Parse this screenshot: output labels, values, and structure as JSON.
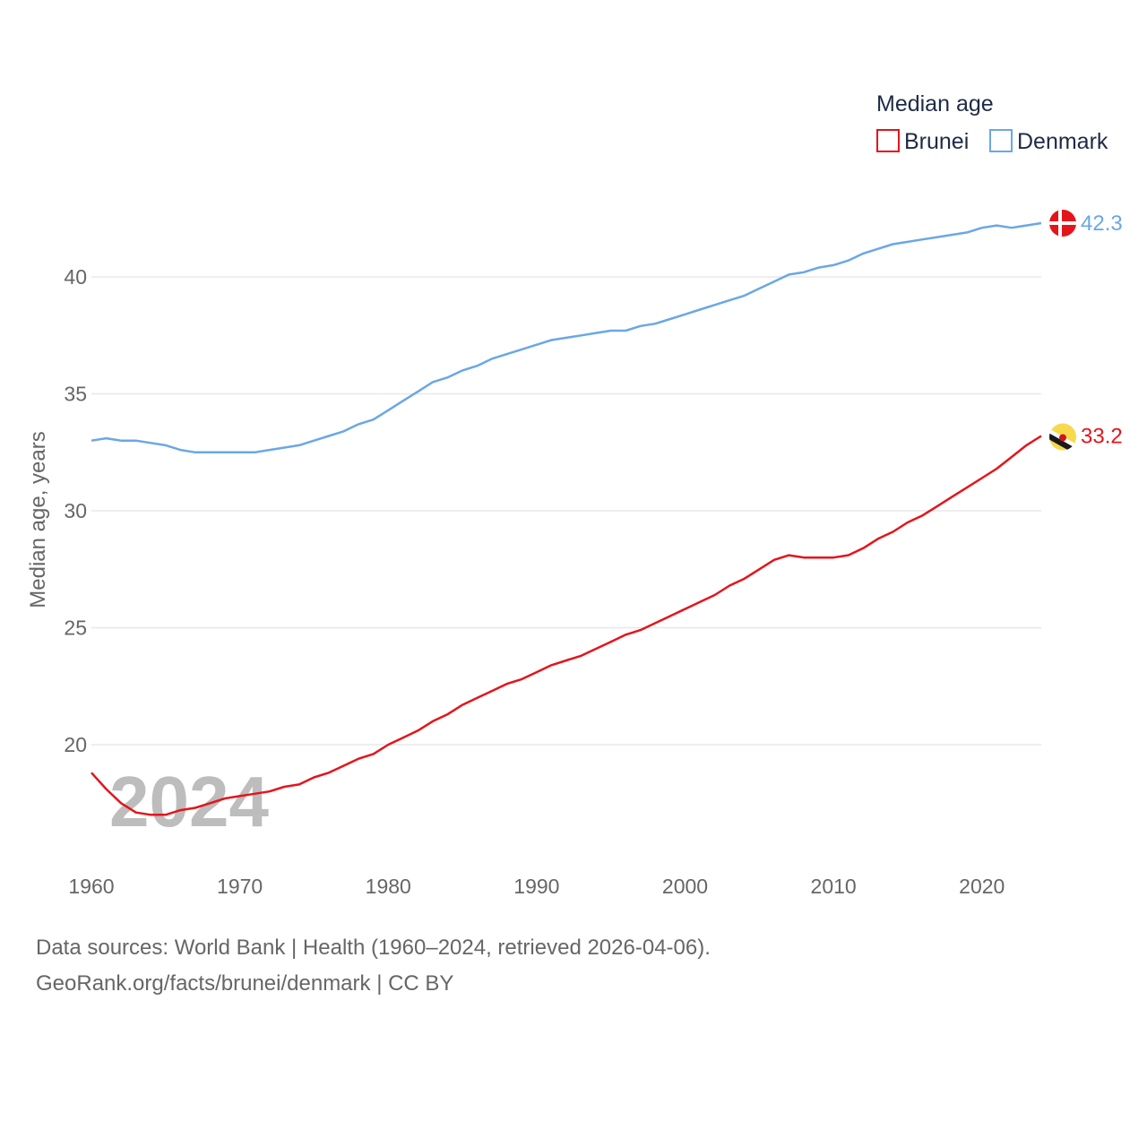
{
  "chart_data": {
    "type": "line",
    "legend": {
      "title": "Median age",
      "position": "top-right"
    },
    "ylabel": "Median age, years",
    "xlabel": "",
    "ylim": [
      15.5,
      43.5
    ],
    "xlim": [
      1960,
      2024
    ],
    "yticks": [
      20,
      25,
      30,
      35,
      40
    ],
    "xticks": [
      1960,
      1970,
      1980,
      1990,
      2000,
      2010,
      2020
    ],
    "grid": true,
    "year_label": "2024",
    "series": [
      {
        "name": "Brunei",
        "color": "#e5141b",
        "end_label": "33.2",
        "x": [
          1960,
          1961,
          1962,
          1963,
          1964,
          1965,
          1966,
          1967,
          1968,
          1969,
          1970,
          1971,
          1972,
          1973,
          1974,
          1975,
          1976,
          1977,
          1978,
          1979,
          1980,
          1981,
          1982,
          1983,
          1984,
          1985,
          1986,
          1987,
          1988,
          1989,
          1990,
          1991,
          1992,
          1993,
          1994,
          1995,
          1996,
          1997,
          1998,
          1999,
          2000,
          2001,
          2002,
          2003,
          2004,
          2005,
          2006,
          2007,
          2008,
          2009,
          2010,
          2011,
          2012,
          2013,
          2014,
          2015,
          2016,
          2017,
          2018,
          2019,
          2020,
          2021,
          2022,
          2023,
          2024
        ],
        "values": [
          18.8,
          18.1,
          17.5,
          17.1,
          17.0,
          17.0,
          17.2,
          17.3,
          17.5,
          17.7,
          17.8,
          17.9,
          18.0,
          18.2,
          18.3,
          18.6,
          18.8,
          19.1,
          19.4,
          19.6,
          20.0,
          20.3,
          20.6,
          21.0,
          21.3,
          21.7,
          22.0,
          22.3,
          22.6,
          22.8,
          23.1,
          23.4,
          23.6,
          23.8,
          24.1,
          24.4,
          24.7,
          24.9,
          25.2,
          25.5,
          25.8,
          26.1,
          26.4,
          26.8,
          27.1,
          27.5,
          27.9,
          28.1,
          28.0,
          28.0,
          28.0,
          28.1,
          28.4,
          28.8,
          29.1,
          29.5,
          29.8,
          30.2,
          30.6,
          31.0,
          31.4,
          31.8,
          32.3,
          32.8,
          33.2
        ]
      },
      {
        "name": "Denmark",
        "color": "#6aa7e6",
        "end_label": "42.3",
        "x": [
          1960,
          1961,
          1962,
          1963,
          1964,
          1965,
          1966,
          1967,
          1968,
          1969,
          1970,
          1971,
          1972,
          1973,
          1974,
          1975,
          1976,
          1977,
          1978,
          1979,
          1980,
          1981,
          1982,
          1983,
          1984,
          1985,
          1986,
          1987,
          1988,
          1989,
          1990,
          1991,
          1992,
          1993,
          1994,
          1995,
          1996,
          1997,
          1998,
          1999,
          2000,
          2001,
          2002,
          2003,
          2004,
          2005,
          2006,
          2007,
          2008,
          2009,
          2010,
          2011,
          2012,
          2013,
          2014,
          2015,
          2016,
          2017,
          2018,
          2019,
          2020,
          2021,
          2022,
          2023,
          2024
        ],
        "values": [
          33.0,
          33.1,
          33.0,
          33.0,
          32.9,
          32.8,
          32.6,
          32.5,
          32.5,
          32.5,
          32.5,
          32.5,
          32.6,
          32.7,
          32.8,
          33.0,
          33.2,
          33.4,
          33.7,
          33.9,
          34.3,
          34.7,
          35.1,
          35.5,
          35.7,
          36.0,
          36.2,
          36.5,
          36.7,
          36.9,
          37.1,
          37.3,
          37.4,
          37.5,
          37.6,
          37.7,
          37.7,
          37.9,
          38.0,
          38.2,
          38.4,
          38.6,
          38.8,
          39.0,
          39.2,
          39.5,
          39.8,
          40.1,
          40.2,
          40.4,
          40.5,
          40.7,
          41.0,
          41.2,
          41.4,
          41.5,
          41.6,
          41.7,
          41.8,
          41.9,
          42.1,
          42.2,
          42.1,
          42.2,
          42.3
        ]
      }
    ]
  },
  "footer": {
    "source": "Data sources: World Bank | Health (1960–2024, retrieved 2026-04-06).",
    "credit": "GeoRank.org/facts/brunei/denmark | CC BY"
  },
  "icons": {
    "denmark_flag": "denmark-flag-icon",
    "brunei_flag": "brunei-flag-icon"
  }
}
